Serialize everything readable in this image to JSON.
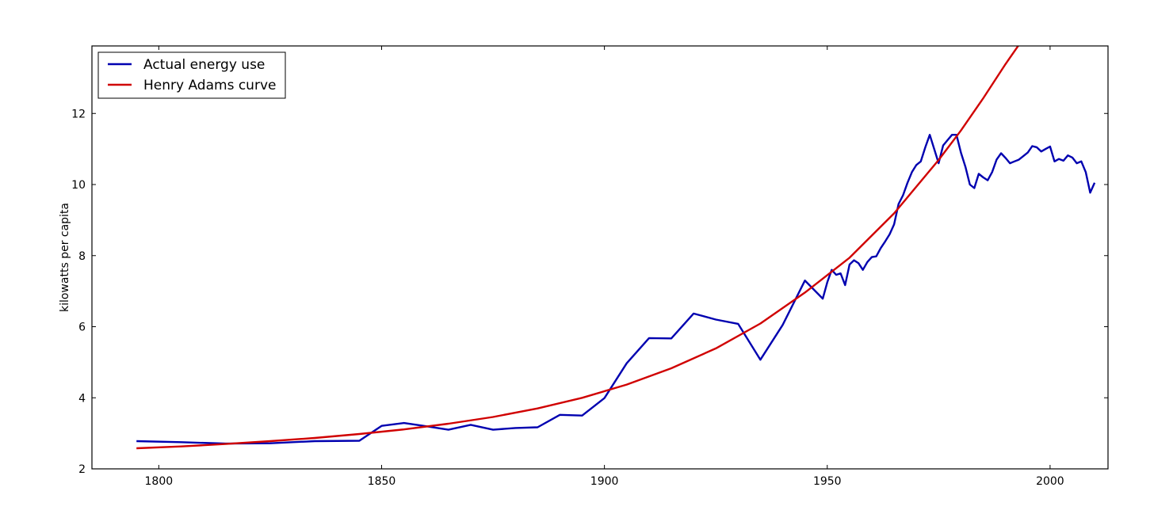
{
  "chart_data": {
    "type": "line",
    "title": "",
    "xlabel": "",
    "ylabel": "kilowatts per capita",
    "xlim": [
      1785,
      2013
    ],
    "ylim": [
      2,
      13.9
    ],
    "xticks": [
      1800,
      1850,
      1900,
      1950,
      2000
    ],
    "yticks": [
      2,
      4,
      6,
      8,
      10,
      12
    ],
    "grid": false,
    "legend_position": "top-left",
    "series": [
      {
        "name": "Actual energy use",
        "color": "#0000b0",
        "points": [
          [
            1795,
            2.78
          ],
          [
            1805,
            2.75
          ],
          [
            1815,
            2.71
          ],
          [
            1825,
            2.72
          ],
          [
            1835,
            2.78
          ],
          [
            1845,
            2.79
          ],
          [
            1850,
            3.21
          ],
          [
            1855,
            3.29
          ],
          [
            1860,
            3.2
          ],
          [
            1865,
            3.1
          ],
          [
            1870,
            3.24
          ],
          [
            1875,
            3.1
          ],
          [
            1880,
            3.15
          ],
          [
            1885,
            3.17
          ],
          [
            1890,
            3.52
          ],
          [
            1895,
            3.5
          ],
          [
            1900,
            3.99
          ],
          [
            1905,
            4.97
          ],
          [
            1910,
            5.68
          ],
          [
            1915,
            5.67
          ],
          [
            1920,
            6.37
          ],
          [
            1925,
            6.2
          ],
          [
            1930,
            6.08
          ],
          [
            1935,
            5.07
          ],
          [
            1940,
            6.05
          ],
          [
            1945,
            7.3
          ],
          [
            1949,
            6.79
          ],
          [
            1950,
            7.25
          ],
          [
            1951,
            7.6
          ],
          [
            1952,
            7.46
          ],
          [
            1953,
            7.5
          ],
          [
            1954,
            7.17
          ],
          [
            1955,
            7.75
          ],
          [
            1956,
            7.87
          ],
          [
            1957,
            7.79
          ],
          [
            1958,
            7.6
          ],
          [
            1959,
            7.82
          ],
          [
            1960,
            7.96
          ],
          [
            1961,
            7.98
          ],
          [
            1962,
            8.21
          ],
          [
            1963,
            8.4
          ],
          [
            1964,
            8.6
          ],
          [
            1965,
            8.88
          ],
          [
            1966,
            9.45
          ],
          [
            1967,
            9.7
          ],
          [
            1968,
            10.05
          ],
          [
            1969,
            10.35
          ],
          [
            1970,
            10.55
          ],
          [
            1971,
            10.65
          ],
          [
            1972,
            11.05
          ],
          [
            1973,
            11.4
          ],
          [
            1974,
            11.0
          ],
          [
            1975,
            10.6
          ],
          [
            1976,
            11.1
          ],
          [
            1977,
            11.25
          ],
          [
            1978,
            11.4
          ],
          [
            1979,
            11.4
          ],
          [
            1980,
            10.9
          ],
          [
            1981,
            10.5
          ],
          [
            1982,
            10.0
          ],
          [
            1983,
            9.9
          ],
          [
            1984,
            10.3
          ],
          [
            1985,
            10.2
          ],
          [
            1986,
            10.12
          ],
          [
            1987,
            10.35
          ],
          [
            1988,
            10.7
          ],
          [
            1989,
            10.88
          ],
          [
            1990,
            10.75
          ],
          [
            1991,
            10.6
          ],
          [
            1992,
            10.65
          ],
          [
            1993,
            10.7
          ],
          [
            1994,
            10.8
          ],
          [
            1995,
            10.9
          ],
          [
            1996,
            11.08
          ],
          [
            1997,
            11.05
          ],
          [
            1998,
            10.93
          ],
          [
            1999,
            11.0
          ],
          [
            2000,
            11.07
          ],
          [
            2001,
            10.65
          ],
          [
            2002,
            10.72
          ],
          [
            2003,
            10.67
          ],
          [
            2004,
            10.82
          ],
          [
            2005,
            10.76
          ],
          [
            2006,
            10.6
          ],
          [
            2007,
            10.65
          ],
          [
            2008,
            10.35
          ],
          [
            2009,
            9.77
          ],
          [
            2010,
            10.05
          ]
        ]
      },
      {
        "name": "Henry Adams curve",
        "color": "#d00000",
        "points": [
          [
            1795,
            2.58
          ],
          [
            1805,
            2.63
          ],
          [
            1815,
            2.7
          ],
          [
            1825,
            2.78
          ],
          [
            1835,
            2.87
          ],
          [
            1845,
            2.98
          ],
          [
            1855,
            3.11
          ],
          [
            1865,
            3.27
          ],
          [
            1875,
            3.46
          ],
          [
            1885,
            3.7
          ],
          [
            1895,
            4.0
          ],
          [
            1905,
            4.37
          ],
          [
            1915,
            4.83
          ],
          [
            1925,
            5.39
          ],
          [
            1935,
            6.09
          ],
          [
            1945,
            6.96
          ],
          [
            1955,
            7.94
          ],
          [
            1965,
            9.19
          ],
          [
            1975,
            10.69
          ],
          [
            1980,
            11.52
          ],
          [
            1985,
            12.43
          ],
          [
            1990,
            13.39
          ],
          [
            1993,
            13.93
          ]
        ]
      }
    ]
  }
}
